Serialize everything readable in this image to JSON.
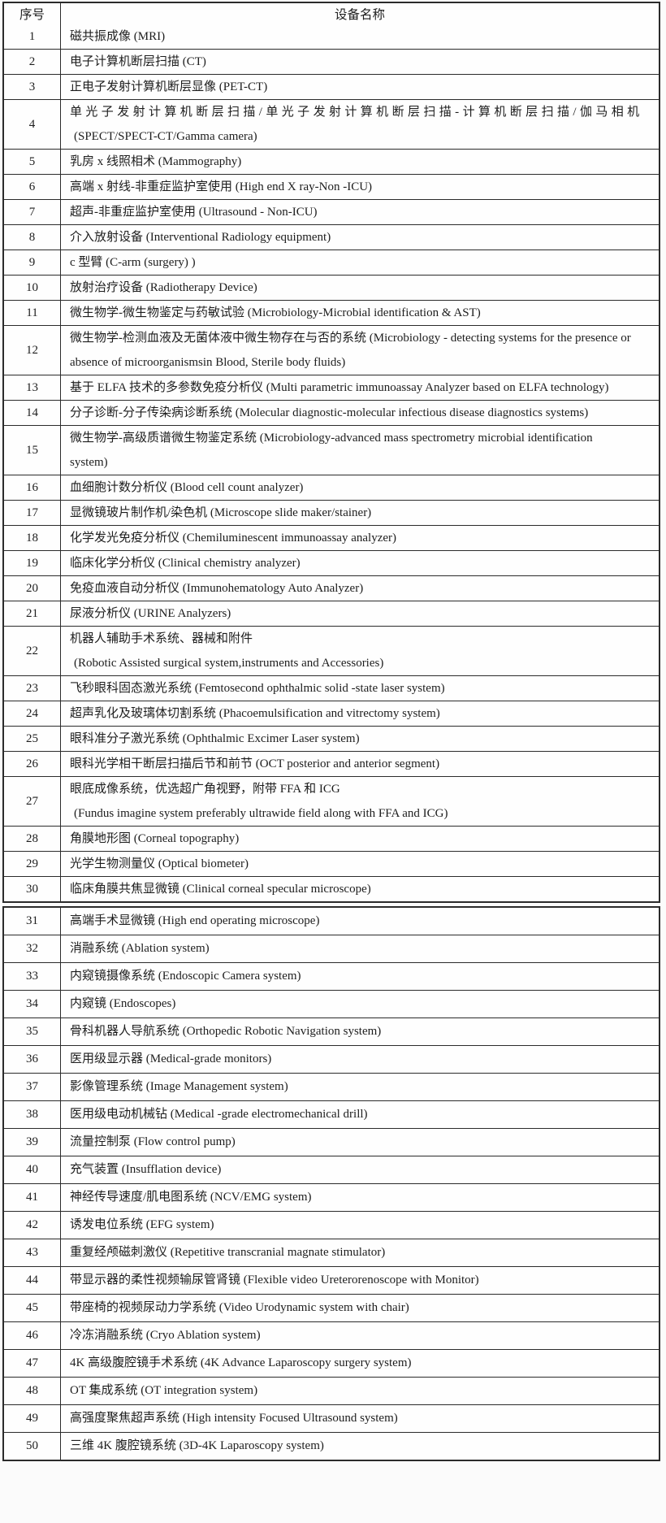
{
  "table": {
    "columns": {
      "no": "序号",
      "name": "设备名称"
    },
    "pages": [
      {
        "rows": [
          {
            "no": "1",
            "lines": [
              "磁共振成像 (MRI)"
            ]
          },
          {
            "no": "2",
            "lines": [
              "电子计算机断层扫描 (CT)"
            ]
          },
          {
            "no": "3",
            "lines": [
              "正电子发射计算机断层显像 (PET-CT)"
            ]
          },
          {
            "no": "4",
            "justified": true,
            "lines": [
              "单光子发射计算机断层扫描/单光子发射计算机断层扫描-计算机断层扫描/伽马相机",
              "(SPECT/SPECT-CT/Gamma camera)"
            ]
          },
          {
            "no": "5",
            "lines": [
              "乳房 x 线照相术 (Mammography)"
            ]
          },
          {
            "no": "6",
            "lines": [
              "高端 x 射线-非重症监护室使用 (High end X ray-Non -ICU)"
            ]
          },
          {
            "no": "7",
            "lines": [
              "超声-非重症监护室使用 (Ultrasound - Non-ICU)"
            ]
          },
          {
            "no": "8",
            "lines": [
              "介入放射设备 (Interventional Radiology equipment)"
            ]
          },
          {
            "no": "9",
            "lines": [
              "c 型臂 (C-arm (surgery) )"
            ]
          },
          {
            "no": "10",
            "lines": [
              "放射治疗设备 (Radiotherapy Device)"
            ]
          },
          {
            "no": "11",
            "lines": [
              "微生物学-微生物鉴定与药敏试验 (Microbiology-Microbial identification & AST)"
            ]
          },
          {
            "no": "12",
            "lines": [
              "微生物学-检测血液及无菌体液中微生物存在与否的系统 (Microbiology - detecting systems for the presence or",
              "absence of microorganismsin Blood, Sterile body fluids)"
            ]
          },
          {
            "no": "13",
            "lines": [
              "基于 ELFA 技术的多参数免疫分析仪 (Multi parametric immunoassay Analyzer based on ELFA technology)"
            ]
          },
          {
            "no": "14",
            "lines": [
              "分子诊断-分子传染病诊断系统 (Molecular diagnostic-molecular infectious disease diagnostics systems)"
            ]
          },
          {
            "no": "15",
            "lines": [
              "微生物学-高级质谱微生物鉴定系统 (Microbiology-advanced mass spectrometry microbial identification",
              "system)"
            ]
          },
          {
            "no": "16",
            "lines": [
              "血细胞计数分析仪 (Blood cell count analyzer)"
            ]
          },
          {
            "no": "17",
            "lines": [
              "显微镜玻片制作机/染色机 (Microscope slide maker/stainer)"
            ]
          },
          {
            "no": "18",
            "lines": [
              "化学发光免疫分析仪 (Chemiluminescent immunoassay analyzer)"
            ]
          },
          {
            "no": "19",
            "lines": [
              "临床化学分析仪 (Clinical chemistry analyzer)"
            ]
          },
          {
            "no": "20",
            "lines": [
              "免疫血液自动分析仪 (Immunohematology Auto Analyzer)"
            ]
          },
          {
            "no": "21",
            "lines": [
              "尿液分析仪 (URINE Analyzers)"
            ]
          },
          {
            "no": "22",
            "lines": [
              "机器人辅助手术系统、器械和附件",
              "(Robotic Assisted surgical system,instruments and Accessories)"
            ]
          },
          {
            "no": "23",
            "lines": [
              "飞秒眼科固态激光系统 (Femtosecond ophthalmic solid -state laser system)"
            ]
          },
          {
            "no": "24",
            "lines": [
              "超声乳化及玻璃体切割系统 (Phacoemulsification and vitrectomy system)"
            ]
          },
          {
            "no": "25",
            "lines": [
              "眼科准分子激光系统 (Ophthalmic Excimer Laser system)"
            ]
          },
          {
            "no": "26",
            "lines": [
              "眼科光学相干断层扫描后节和前节 (OCT posterior and anterior segment)"
            ]
          },
          {
            "no": "27",
            "lines": [
              "眼底成像系统，优选超广角视野，附带 FFA 和 ICG",
              "(Fundus imagine system preferably ultrawide field along with FFA and ICG)"
            ]
          },
          {
            "no": "28",
            "lines": [
              "角膜地形图 (Corneal topography)"
            ]
          },
          {
            "no": "29",
            "lines": [
              "光学生物测量仪 (Optical biometer)"
            ]
          },
          {
            "no": "30",
            "lines": [
              "临床角膜共焦显微镜 (Clinical corneal specular microscope)"
            ]
          }
        ]
      },
      {
        "rows": [
          {
            "no": "31",
            "lines": [
              "高端手术显微镜 (High end operating microscope)"
            ]
          },
          {
            "no": "32",
            "lines": [
              "消融系统 (Ablation system)"
            ]
          },
          {
            "no": "33",
            "lines": [
              "内窥镜摄像系统 (Endoscopic Camera system)"
            ]
          },
          {
            "no": "34",
            "lines": [
              "内窥镜 (Endoscopes)"
            ]
          },
          {
            "no": "35",
            "lines": [
              "骨科机器人导航系统 (Orthopedic Robotic Navigation system)"
            ]
          },
          {
            "no": "36",
            "lines": [
              "医用级显示器 (Medical-grade monitors)"
            ]
          },
          {
            "no": "37",
            "lines": [
              "影像管理系统 (Image Management system)"
            ]
          },
          {
            "no": "38",
            "lines": [
              "医用级电动机械钻 (Medical -grade electromechanical drill)"
            ]
          },
          {
            "no": "39",
            "lines": [
              "流量控制泵 (Flow control pump)"
            ]
          },
          {
            "no": "40",
            "lines": [
              "充气装置 (Insufflation device)"
            ]
          },
          {
            "no": "41",
            "lines": [
              "神经传导速度/肌电图系统 (NCV/EMG system)"
            ]
          },
          {
            "no": "42",
            "lines": [
              "诱发电位系统 (EFG system)"
            ]
          },
          {
            "no": "43",
            "lines": [
              "重复经颅磁刺激仪 (Repetitive transcranial magnate stimulator)"
            ]
          },
          {
            "no": "44",
            "lines": [
              "带显示器的柔性视频输尿管肾镜 (Flexible video Ureterorenoscope with Monitor)"
            ]
          },
          {
            "no": "45",
            "lines": [
              "带座椅的视频尿动力学系统 (Video Urodynamic system with chair)"
            ]
          },
          {
            "no": "46",
            "lines": [
              "冷冻消融系统 (Cryo Ablation system)"
            ]
          },
          {
            "no": "47",
            "lines": [
              "4K 高级腹腔镜手术系统 (4K Advance Laparoscopy surgery system)"
            ]
          },
          {
            "no": "48",
            "lines": [
              "OT 集成系统 (OT integration system)"
            ]
          },
          {
            "no": "49",
            "lines": [
              "高强度聚焦超声系统 (High intensity Focused Ultrasound system)"
            ]
          },
          {
            "no": "50",
            "lines": [
              "三维 4K 腹腔镜系统 (3D-4K Laparoscopy system)"
            ]
          }
        ]
      }
    ]
  }
}
